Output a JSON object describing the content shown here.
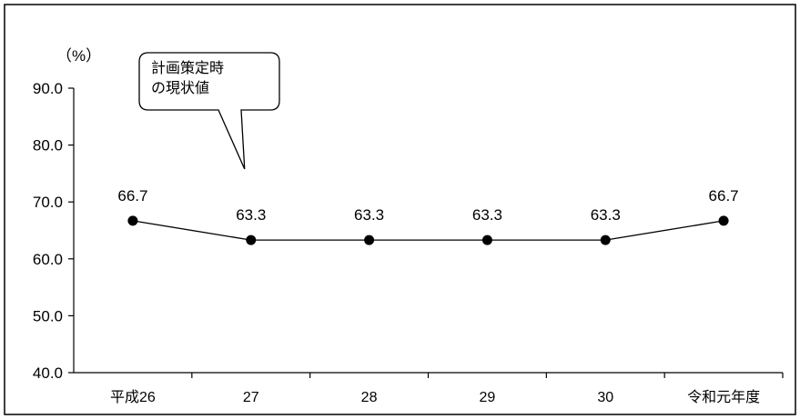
{
  "chart_data": {
    "type": "line",
    "categories": [
      "平成26",
      "27",
      "28",
      "29",
      "30",
      "令和元年度"
    ],
    "series": [
      {
        "values": [
          66.7,
          63.3,
          63.3,
          63.3,
          63.3,
          66.7
        ]
      }
    ],
    "data_labels": [
      "66.7",
      "63.3",
      "63.3",
      "63.3",
      "63.3",
      "66.7"
    ],
    "ylabel": "（%）",
    "ylim": [
      40,
      90
    ],
    "yticks": [
      40,
      50,
      60,
      70,
      80,
      90
    ],
    "ytick_labels": [
      "40.0",
      "50.0",
      "60.0",
      "70.0",
      "80.0",
      "90.0"
    ],
    "grid": false,
    "legend": "none",
    "annotation": {
      "lines": [
        "計画策定時",
        "の現状値"
      ],
      "points_to_category": "27"
    },
    "line_color": "#000000"
  }
}
